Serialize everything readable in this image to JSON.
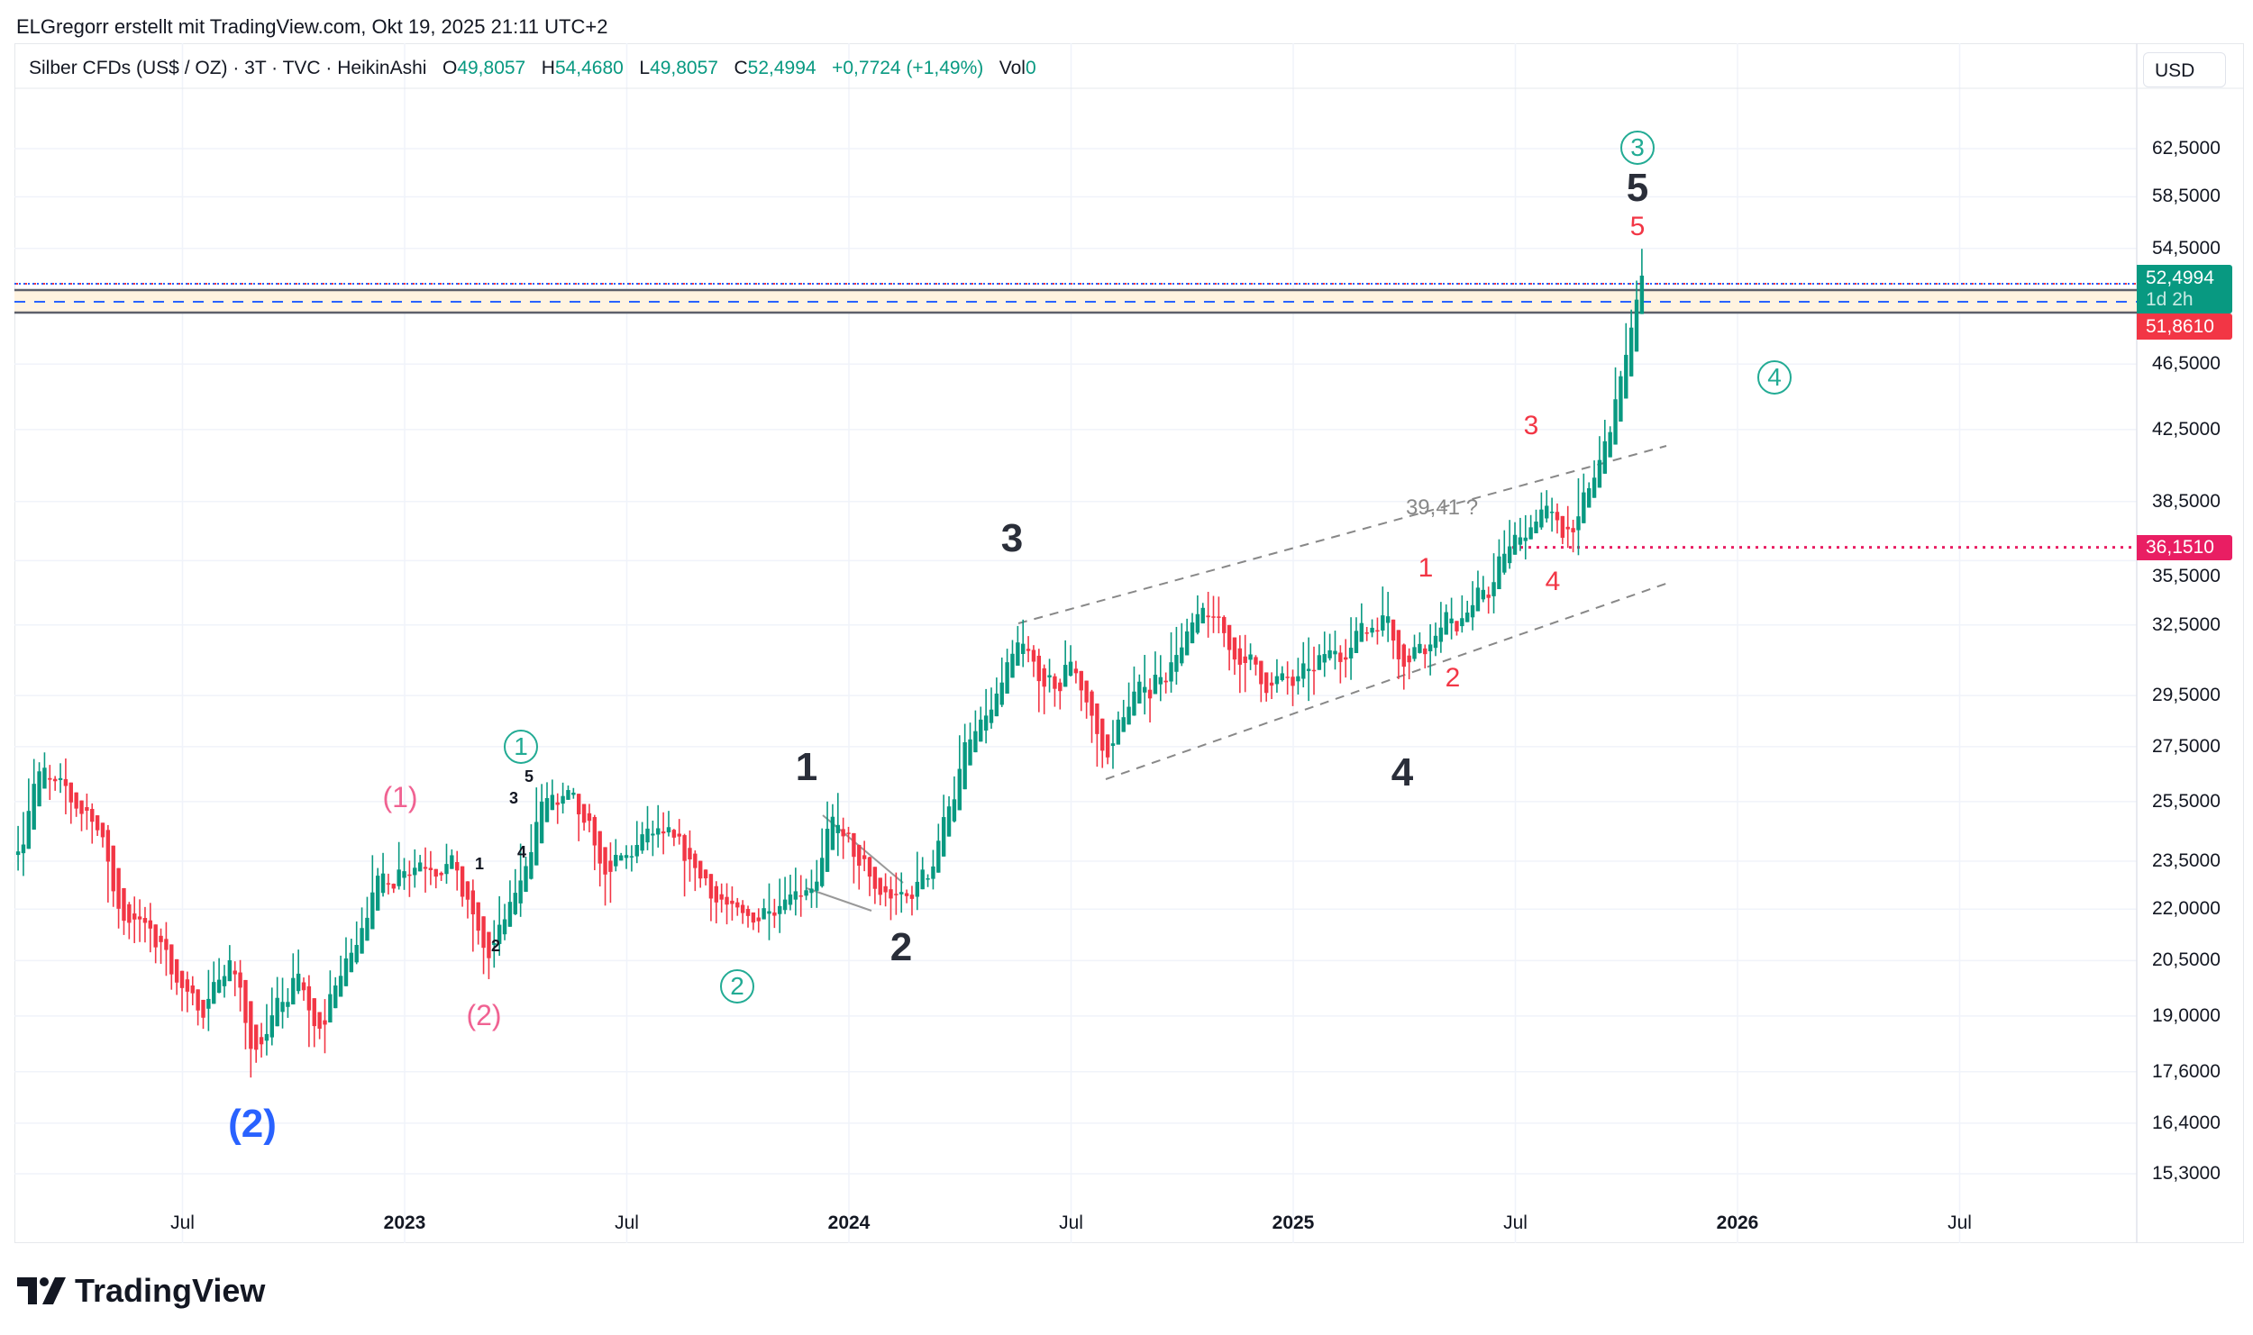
{
  "header": {
    "title": "ELGregorr erstellt mit TradingView.com, Okt 19, 2025 21:11 UTC+2"
  },
  "legend": {
    "symbol": "Silber CFDs (US$ / OZ) · 3T · TVC · HeikinAshi",
    "o_label": "O",
    "o": "49,8057",
    "h_label": "H",
    "h": "54,4680",
    "l_label": "L",
    "l": "49,8057",
    "c_label": "C",
    "c": "52,4994",
    "change": "+0,7724 (+1,49%)",
    "vol_label": "Vol",
    "vol": "0"
  },
  "currency_button": "USD",
  "price_tags": {
    "last": "52,4994",
    "countdown": "1d 2h",
    "zone": "51,8610",
    "level": "36,1510"
  },
  "colors": {
    "up": "#089981",
    "down": "#f23645",
    "level": "#e91e63",
    "zone": "#fff3e0"
  },
  "annotations": {
    "c3": "3",
    "c4": "4",
    "c1": "1",
    "c2": "2",
    "big5": "5",
    "red5": "5",
    "red3": "3",
    "red1": "1",
    "red4": "4",
    "red2": "2",
    "fib": "39,41 ?",
    "big3": "3",
    "big4": "4",
    "big1": "1",
    "big2": "2",
    "pink1": "(1)",
    "pink2": "(2)",
    "blue2": "(2)",
    "s5": "5",
    "s3": "3",
    "s1": "1",
    "s4": "4",
    "s2": "2"
  },
  "logo_text": "TradingView",
  "chart_data": {
    "type": "candlestick",
    "title": "Silber CFDs (US$ / OZ) · 3T · TVC · HeikinAshi",
    "y_scale": "log",
    "y_ticks": [
      "62,5000",
      "58,5000",
      "54,5000",
      "46,5000",
      "42,5000",
      "38,5000",
      "35,5000",
      "32,5000",
      "29,5000",
      "27,5000",
      "25,5000",
      "23,5000",
      "22,0000",
      "20,5000",
      "19,0000",
      "17,6000",
      "16,4000",
      "15,3000"
    ],
    "y_tick_values": [
      62.5,
      58.5,
      54.5,
      46.5,
      42.5,
      38.5,
      35.5,
      32.5,
      29.5,
      27.5,
      25.5,
      23.5,
      22,
      20.5,
      19,
      17.6,
      16.4,
      15.3
    ],
    "x_ticks": [
      {
        "label": "Jul",
        "t": 2022.5,
        "year": false
      },
      {
        "label": "2023",
        "t": 2023.0,
        "year": true
      },
      {
        "label": "Jul",
        "t": 2023.5,
        "year": false
      },
      {
        "label": "2024",
        "t": 2024.0,
        "year": true
      },
      {
        "label": "Jul",
        "t": 2024.5,
        "year": false
      },
      {
        "label": "2025",
        "t": 2025.0,
        "year": true
      },
      {
        "label": "Jul",
        "t": 2025.5,
        "year": false
      },
      {
        "label": "2026",
        "t": 2026.0,
        "year": true
      },
      {
        "label": "Jul",
        "t": 2026.5,
        "year": false
      }
    ],
    "price_path": [
      [
        2022.13,
        24
      ],
      [
        2022.16,
        26.5
      ],
      [
        2022.3,
        25
      ],
      [
        2022.35,
        22
      ],
      [
        2022.45,
        21
      ],
      [
        2022.52,
        19
      ],
      [
        2022.6,
        20.5
      ],
      [
        2022.66,
        18
      ],
      [
        2022.75,
        20
      ],
      [
        2022.8,
        18.5
      ],
      [
        2022.92,
        22.5
      ],
      [
        2023.0,
        23.5
      ],
      [
        2023.1,
        23.5
      ],
      [
        2023.18,
        20.5
      ],
      [
        2023.25,
        22.5
      ],
      [
        2023.3,
        25.5
      ],
      [
        2023.37,
        25.5
      ],
      [
        2023.45,
        23
      ],
      [
        2023.55,
        24.5
      ],
      [
        2023.65,
        23.3
      ],
      [
        2023.75,
        21.5
      ],
      [
        2023.85,
        22.5
      ],
      [
        2023.93,
        23
      ],
      [
        2023.96,
        25
      ],
      [
        2024.05,
        22.5
      ],
      [
        2024.12,
        22.2
      ],
      [
        2024.18,
        23.5
      ],
      [
        2024.25,
        27
      ],
      [
        2024.32,
        29
      ],
      [
        2024.38,
        31.5
      ],
      [
        2024.45,
        29.5
      ],
      [
        2024.5,
        31
      ],
      [
        2024.57,
        27
      ],
      [
        2024.62,
        29
      ],
      [
        2024.7,
        30.5
      ],
      [
        2024.8,
        33
      ],
      [
        2024.88,
        31
      ],
      [
        2024.95,
        30
      ],
      [
        2025.0,
        30
      ],
      [
        2025.1,
        31.5
      ],
      [
        2025.2,
        33
      ],
      [
        2025.25,
        31
      ],
      [
        2025.32,
        32.5
      ],
      [
        2025.4,
        33
      ],
      [
        2025.48,
        36
      ],
      [
        2025.55,
        38
      ],
      [
        2025.6,
        37
      ],
      [
        2025.65,
        38
      ],
      [
        2025.7,
        42
      ],
      [
        2025.75,
        48
      ],
      [
        2025.79,
        52.5
      ]
    ],
    "last_candle": {
      "open": 49.8057,
      "high": 54.468,
      "low": 49.8057,
      "close": 52.4994
    },
    "horizontal_levels": [
      36.151,
      51.861,
      52.4994
    ],
    "zone": [
      50.4,
      52.0
    ]
  }
}
